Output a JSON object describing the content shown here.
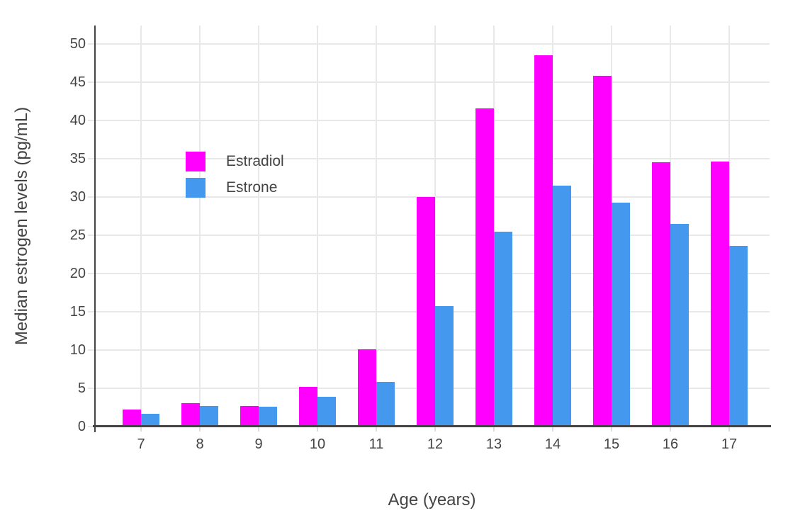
{
  "chart_data": {
    "type": "bar",
    "title": "",
    "xlabel": "Age (years)",
    "ylabel": "Median estrogen levels (pg/mL)",
    "categories": [
      "7",
      "8",
      "9",
      "10",
      "11",
      "12",
      "13",
      "14",
      "15",
      "16",
      "17"
    ],
    "series": [
      {
        "name": "Estradiol",
        "color": "#ff00ff",
        "values": [
          2.2,
          3.1,
          2.7,
          5.2,
          10.1,
          30.0,
          41.6,
          48.5,
          45.8,
          34.5,
          34.6
        ]
      },
      {
        "name": "Estrone",
        "color": "#4499ee",
        "values": [
          1.7,
          2.7,
          2.6,
          3.9,
          5.8,
          15.7,
          25.5,
          31.5,
          29.3,
          26.5,
          23.6
        ]
      }
    ],
    "y_ticks": [
      0,
      5,
      10,
      15,
      20,
      25,
      30,
      35,
      40,
      45,
      50
    ],
    "ylim": [
      0,
      52.4
    ],
    "grid": true,
    "legend_position": "inside-top-left",
    "colors": {
      "background": "#ffffff",
      "text": "#444444",
      "axis": "#444444",
      "grid": "#e8e8e8"
    }
  }
}
